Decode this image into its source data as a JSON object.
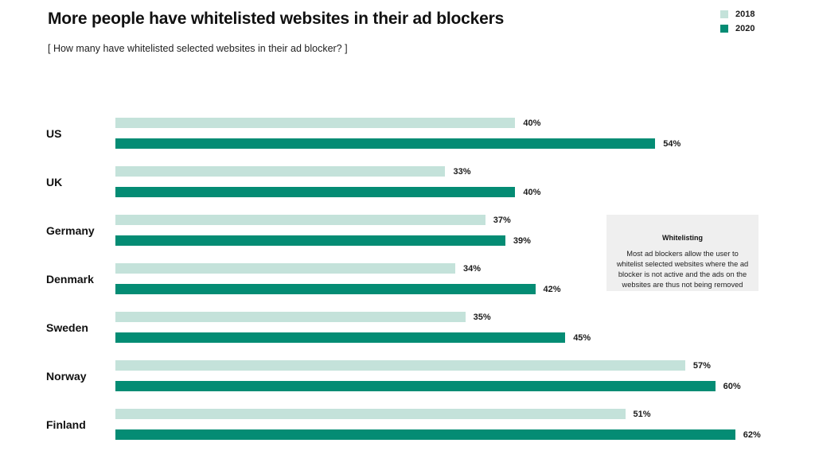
{
  "header": {
    "title": "More people have whitelisted websites in their ad blockers",
    "subtitle": "[ How many have whitelisted selected websites in their ad blocker? ]"
  },
  "legend": {
    "position": "top-right",
    "items": [
      {
        "label": "2018",
        "color": "#c4e2da"
      },
      {
        "label": "2020",
        "color": "#048c74"
      }
    ]
  },
  "annotation": {
    "title": "Whitelisting",
    "body": "Most ad blockers allow the user to whitelist selected websites where the ad blocker is not active and the ads on the websites are thus not being removed",
    "background": "#efefef"
  },
  "chart_data": {
    "type": "bar",
    "orientation": "horizontal",
    "title": "More people have whitelisted websites in their ad blockers",
    "subtitle": "[ How many have whitelisted selected websites in their ad blocker? ]",
    "categories": [
      "US",
      "UK",
      "Germany",
      "Denmark",
      "Sweden",
      "Norway",
      "Finland"
    ],
    "series": [
      {
        "name": "2018",
        "color": "#c4e2da",
        "values": [
          40,
          33,
          37,
          34,
          35,
          57,
          51
        ]
      },
      {
        "name": "2020",
        "color": "#048c74",
        "values": [
          54,
          40,
          39,
          42,
          45,
          60,
          62
        ]
      }
    ],
    "value_suffix": "%",
    "xlim": [
      0,
      65
    ],
    "grid": false,
    "legend_position": "top-right",
    "data_labels": true
  },
  "colors": {
    "background": "#ffffff",
    "text": "#1a1a1a",
    "bar_2018": "#c4e2da",
    "bar_2020": "#048c74",
    "annotation_bg": "#efefef"
  }
}
